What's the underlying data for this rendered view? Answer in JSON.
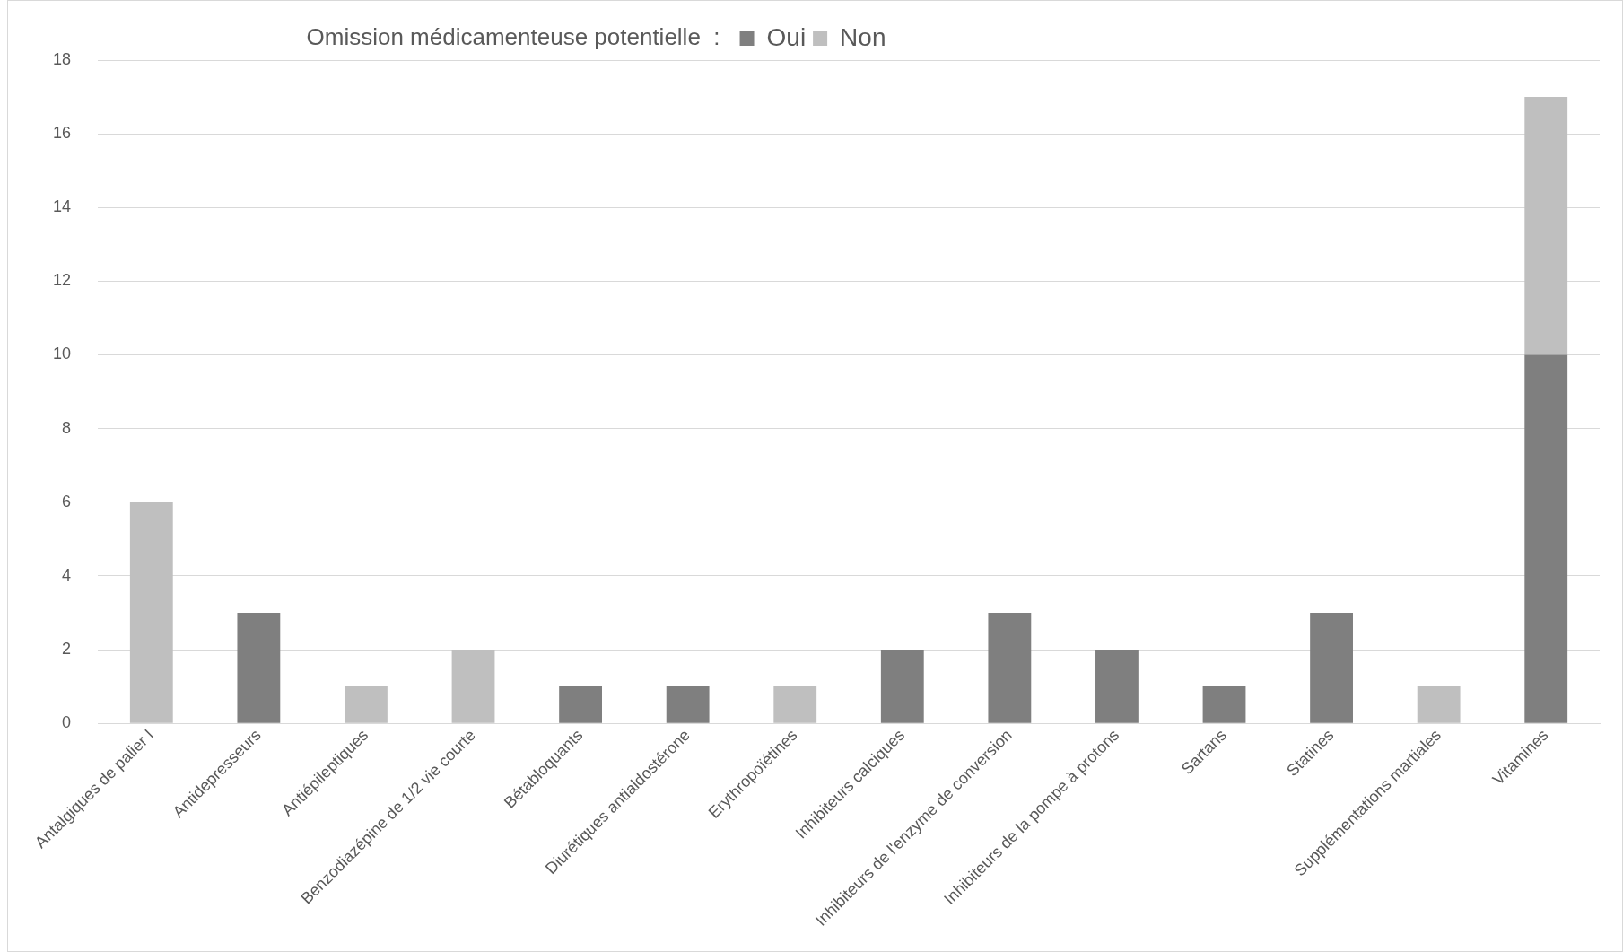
{
  "chart_data": {
    "type": "bar",
    "legend_title": "Omission médicamenteuse potentielle  :",
    "categories": [
      "Antalgiques de palier I",
      "Antidepresseurs",
      "Antiépileptiques",
      "Benzodiazépine de 1/2 vie courte",
      "Bétabloquants",
      "Diurétiques antialdostérone",
      "Erythropoïétines",
      "Inhibiteurs calciques",
      "Inhibiteurs de l'enzyme de conversion",
      "Inhibiteurs de la pompe à protons",
      "Sartans",
      "Statines",
      "Supplémentations martiales",
      "Vitamines"
    ],
    "series": [
      {
        "name": "Oui",
        "color": "#7f7f7f",
        "values": [
          null,
          3,
          null,
          null,
          1,
          1,
          null,
          2,
          3,
          2,
          1,
          3,
          null,
          10
        ]
      },
      {
        "name": "Non",
        "color": "#bfbfbf",
        "values": [
          6,
          null,
          1,
          2,
          null,
          null,
          1,
          null,
          null,
          null,
          null,
          null,
          1,
          7
        ]
      }
    ],
    "stacked": true,
    "ylim": [
      0,
      18
    ],
    "yticks": [
      0,
      2,
      4,
      6,
      8,
      10,
      12,
      14,
      16,
      18
    ],
    "grid": "y",
    "legend": "top"
  }
}
